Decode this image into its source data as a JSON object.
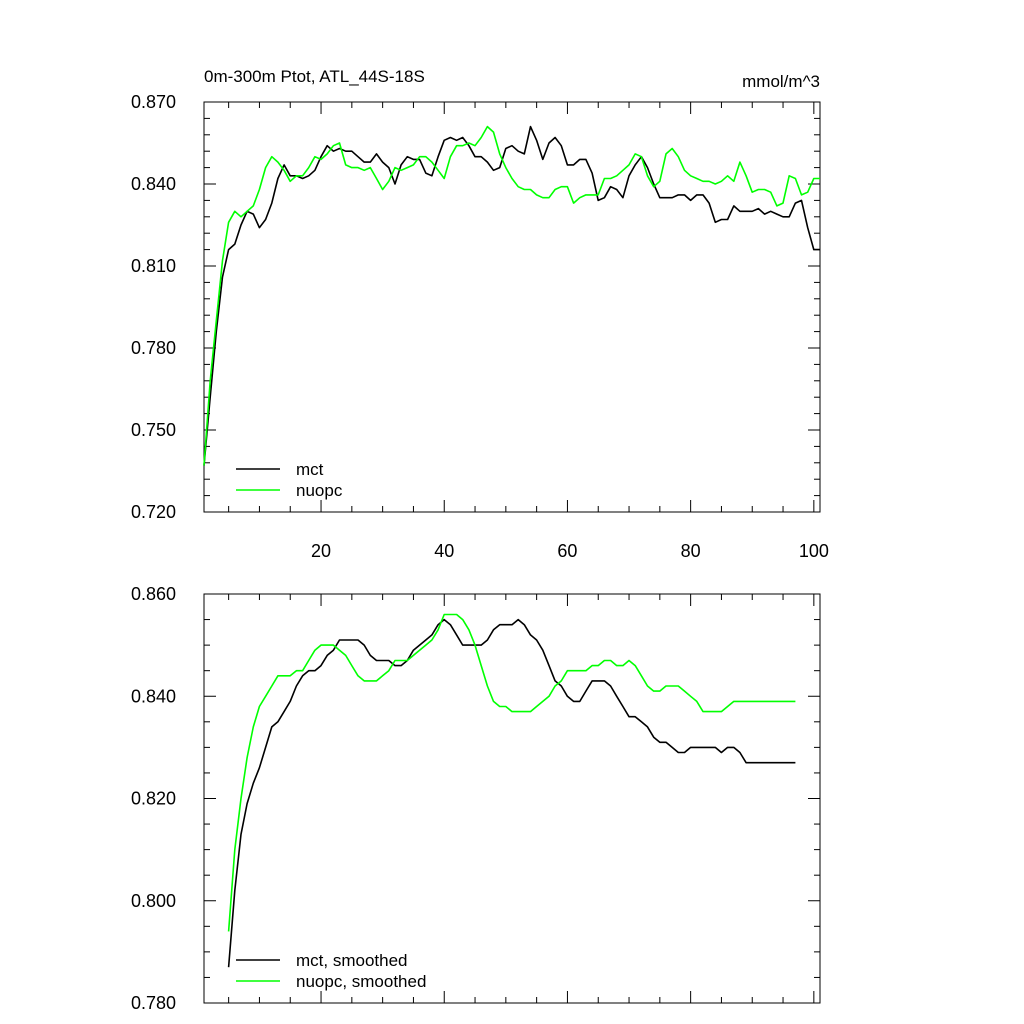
{
  "chart_data": [
    {
      "type": "line",
      "title": "0m-300m Ptot, ATL_44S-18S",
      "units": "mmol/m^3",
      "xlim": [
        1,
        101
      ],
      "ylim": [
        0.72,
        0.87
      ],
      "x_ticks": [
        20,
        40,
        60,
        80,
        100
      ],
      "x_tick_labels": [
        "20",
        "40",
        "60",
        "80",
        "100"
      ],
      "y_ticks": [
        0.72,
        0.75,
        0.78,
        0.81,
        0.84,
        0.87
      ],
      "y_tick_labels": [
        "0.720",
        "0.750",
        "0.780",
        "0.810",
        "0.840",
        "0.870"
      ],
      "legend_position": "bottom-left",
      "series": [
        {
          "name": "mct",
          "color": "#000000",
          "x": [
            1,
            2,
            3,
            4,
            5,
            6,
            7,
            8,
            9,
            10,
            11,
            12,
            13,
            14,
            15,
            16,
            17,
            18,
            19,
            20,
            21,
            22,
            23,
            24,
            25,
            26,
            27,
            28,
            29,
            30,
            31,
            32,
            33,
            34,
            35,
            36,
            37,
            38,
            39,
            40,
            41,
            42,
            43,
            44,
            45,
            46,
            47,
            48,
            49,
            50,
            51,
            52,
            53,
            54,
            55,
            56,
            57,
            58,
            59,
            60,
            61,
            62,
            63,
            64,
            65,
            66,
            67,
            68,
            69,
            70,
            71,
            72,
            73,
            74,
            75,
            76,
            77,
            78,
            79,
            80,
            81,
            82,
            83,
            84,
            85,
            86,
            87,
            88,
            89,
            90,
            91,
            92,
            93,
            94,
            95,
            96,
            97,
            98,
            99,
            100,
            101
          ],
          "values": [
            0.737,
            0.762,
            0.786,
            0.806,
            0.816,
            0.818,
            0.825,
            0.83,
            0.829,
            0.824,
            0.827,
            0.833,
            0.842,
            0.847,
            0.843,
            0.843,
            0.842,
            0.843,
            0.845,
            0.85,
            0.854,
            0.852,
            0.853,
            0.852,
            0.852,
            0.85,
            0.848,
            0.848,
            0.851,
            0.848,
            0.846,
            0.84,
            0.847,
            0.85,
            0.849,
            0.849,
            0.844,
            0.843,
            0.85,
            0.856,
            0.857,
            0.856,
            0.857,
            0.854,
            0.85,
            0.85,
            0.848,
            0.845,
            0.846,
            0.853,
            0.854,
            0.852,
            0.851,
            0.861,
            0.856,
            0.849,
            0.855,
            0.857,
            0.854,
            0.847,
            0.847,
            0.849,
            0.849,
            0.844,
            0.834,
            0.835,
            0.839,
            0.838,
            0.835,
            0.843,
            0.847,
            0.85,
            0.846,
            0.84,
            0.835,
            0.835,
            0.835,
            0.836,
            0.836,
            0.834,
            0.836,
            0.836,
            0.833,
            0.826,
            0.827,
            0.827,
            0.832,
            0.83,
            0.83,
            0.83,
            0.831,
            0.829,
            0.83,
            0.829,
            0.828,
            0.828,
            0.833,
            0.834,
            0.824,
            0.816,
            0.816
          ]
        },
        {
          "name": "nuopc",
          "color": "#00ff00",
          "x": [
            1,
            2,
            3,
            4,
            5,
            6,
            7,
            8,
            9,
            10,
            11,
            12,
            13,
            14,
            15,
            16,
            17,
            18,
            19,
            20,
            21,
            22,
            23,
            24,
            25,
            26,
            27,
            28,
            29,
            30,
            31,
            32,
            33,
            34,
            35,
            36,
            37,
            38,
            39,
            40,
            41,
            42,
            43,
            44,
            45,
            46,
            47,
            48,
            49,
            50,
            51,
            52,
            53,
            54,
            55,
            56,
            57,
            58,
            59,
            60,
            61,
            62,
            63,
            64,
            65,
            66,
            67,
            68,
            69,
            70,
            71,
            72,
            73,
            74,
            75,
            76,
            77,
            78,
            79,
            80,
            81,
            82,
            83,
            84,
            85,
            86,
            87,
            88,
            89,
            90,
            91,
            92,
            93,
            94,
            95,
            96,
            97,
            98,
            99,
            100,
            101
          ],
          "values": [
            0.737,
            0.768,
            0.79,
            0.812,
            0.826,
            0.83,
            0.828,
            0.83,
            0.832,
            0.838,
            0.846,
            0.85,
            0.848,
            0.845,
            0.841,
            0.843,
            0.843,
            0.846,
            0.85,
            0.849,
            0.851,
            0.854,
            0.855,
            0.847,
            0.846,
            0.846,
            0.845,
            0.846,
            0.842,
            0.838,
            0.841,
            0.846,
            0.845,
            0.846,
            0.847,
            0.85,
            0.85,
            0.848,
            0.845,
            0.842,
            0.85,
            0.854,
            0.854,
            0.855,
            0.854,
            0.857,
            0.861,
            0.859,
            0.851,
            0.846,
            0.842,
            0.839,
            0.838,
            0.838,
            0.836,
            0.835,
            0.835,
            0.838,
            0.839,
            0.839,
            0.833,
            0.835,
            0.836,
            0.836,
            0.836,
            0.842,
            0.842,
            0.843,
            0.845,
            0.847,
            0.851,
            0.85,
            0.843,
            0.839,
            0.841,
            0.851,
            0.853,
            0.85,
            0.845,
            0.843,
            0.842,
            0.841,
            0.841,
            0.84,
            0.841,
            0.843,
            0.841,
            0.848,
            0.843,
            0.837,
            0.838,
            0.838,
            0.837,
            0.832,
            0.833,
            0.843,
            0.842,
            0.836,
            0.837,
            0.842,
            0.842
          ]
        }
      ]
    },
    {
      "type": "line",
      "title": "",
      "units": "",
      "xlim": [
        1,
        101
      ],
      "ylim": [
        0.78,
        0.86
      ],
      "x_ticks": [
        20,
        40,
        60,
        80,
        100
      ],
      "x_tick_labels": [],
      "y_ticks": [
        0.78,
        0.8,
        0.82,
        0.84,
        0.86
      ],
      "y_tick_labels": [
        "0.780",
        "0.800",
        "0.820",
        "0.840",
        "0.860"
      ],
      "legend_position": "bottom-left",
      "series": [
        {
          "name": "mct, smoothed",
          "color": "#000000",
          "x": [
            5,
            6,
            7,
            8,
            9,
            10,
            11,
            12,
            13,
            14,
            15,
            16,
            17,
            18,
            19,
            20,
            21,
            22,
            23,
            24,
            25,
            26,
            27,
            28,
            29,
            30,
            31,
            32,
            33,
            34,
            35,
            36,
            37,
            38,
            39,
            40,
            41,
            42,
            43,
            44,
            45,
            46,
            47,
            48,
            49,
            50,
            51,
            52,
            53,
            54,
            55,
            56,
            57,
            58,
            59,
            60,
            61,
            62,
            63,
            64,
            65,
            66,
            67,
            68,
            69,
            70,
            71,
            72,
            73,
            74,
            75,
            76,
            77,
            78,
            79,
            80,
            81,
            82,
            83,
            84,
            85,
            86,
            87,
            88,
            89,
            90,
            91,
            92,
            93,
            94,
            95,
            96,
            97
          ],
          "values": [
            0.787,
            0.802,
            0.813,
            0.819,
            0.823,
            0.826,
            0.83,
            0.834,
            0.835,
            0.837,
            0.839,
            0.842,
            0.844,
            0.845,
            0.845,
            0.846,
            0.848,
            0.849,
            0.851,
            0.851,
            0.851,
            0.851,
            0.85,
            0.848,
            0.847,
            0.847,
            0.847,
            0.846,
            0.846,
            0.847,
            0.849,
            0.85,
            0.851,
            0.852,
            0.854,
            0.855,
            0.854,
            0.852,
            0.85,
            0.85,
            0.85,
            0.85,
            0.851,
            0.853,
            0.854,
            0.854,
            0.854,
            0.855,
            0.854,
            0.852,
            0.851,
            0.849,
            0.846,
            0.843,
            0.842,
            0.84,
            0.839,
            0.839,
            0.841,
            0.843,
            0.843,
            0.843,
            0.842,
            0.84,
            0.838,
            0.836,
            0.836,
            0.835,
            0.834,
            0.832,
            0.831,
            0.831,
            0.83,
            0.829,
            0.829,
            0.83,
            0.83,
            0.83,
            0.83,
            0.83,
            0.829,
            0.83,
            0.83,
            0.829,
            0.827,
            0.827,
            0.827,
            0.827,
            0.827,
            0.827,
            0.827,
            0.827,
            0.827
          ]
        },
        {
          "name": "nuopc, smoothed",
          "color": "#00ff00",
          "x": [
            5,
            6,
            7,
            8,
            9,
            10,
            11,
            12,
            13,
            14,
            15,
            16,
            17,
            18,
            19,
            20,
            21,
            22,
            23,
            24,
            25,
            26,
            27,
            28,
            29,
            30,
            31,
            32,
            33,
            34,
            35,
            36,
            37,
            38,
            39,
            40,
            41,
            42,
            43,
            44,
            45,
            46,
            47,
            48,
            49,
            50,
            51,
            52,
            53,
            54,
            55,
            56,
            57,
            58,
            59,
            60,
            61,
            62,
            63,
            64,
            65,
            66,
            67,
            68,
            69,
            70,
            71,
            72,
            73,
            74,
            75,
            76,
            77,
            78,
            79,
            80,
            81,
            82,
            83,
            84,
            85,
            86,
            87,
            88,
            89,
            90,
            91,
            92,
            93,
            94,
            95,
            96,
            97
          ],
          "values": [
            0.794,
            0.81,
            0.82,
            0.828,
            0.834,
            0.838,
            0.84,
            0.842,
            0.844,
            0.844,
            0.844,
            0.845,
            0.845,
            0.847,
            0.849,
            0.85,
            0.85,
            0.85,
            0.849,
            0.848,
            0.846,
            0.844,
            0.843,
            0.843,
            0.843,
            0.844,
            0.845,
            0.847,
            0.847,
            0.847,
            0.848,
            0.849,
            0.85,
            0.851,
            0.853,
            0.856,
            0.856,
            0.856,
            0.855,
            0.853,
            0.85,
            0.846,
            0.842,
            0.839,
            0.838,
            0.838,
            0.837,
            0.837,
            0.837,
            0.837,
            0.838,
            0.839,
            0.84,
            0.842,
            0.843,
            0.845,
            0.845,
            0.845,
            0.845,
            0.846,
            0.846,
            0.847,
            0.847,
            0.846,
            0.846,
            0.847,
            0.846,
            0.844,
            0.842,
            0.841,
            0.841,
            0.842,
            0.842,
            0.842,
            0.841,
            0.84,
            0.839,
            0.837,
            0.837,
            0.837,
            0.837,
            0.838,
            0.839,
            0.839,
            0.839,
            0.839,
            0.839,
            0.839,
            0.839,
            0.839,
            0.839,
            0.839,
            0.839
          ]
        }
      ]
    }
  ]
}
